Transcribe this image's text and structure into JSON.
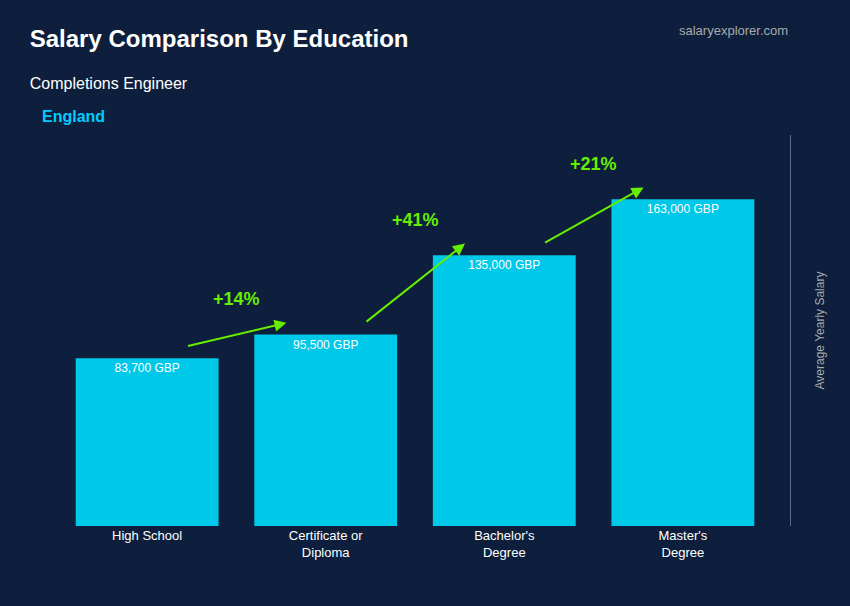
{
  "chart_data": {
    "type": "bar",
    "title": "Salary Comparison By Education",
    "subtitle": "Completions Engineer",
    "y_label": "Average Yearly Salary",
    "categories": [
      "High School",
      "Certificate or\nDiploma",
      "Bachelor's\nDegree",
      "Master's\nDegree"
    ],
    "values": [
      83700,
      95500,
      135000,
      163000
    ],
    "value_labels": [
      "83,700 GBP",
      "95,500 GBP",
      "135,000 GBP",
      "163,000 GBP"
    ],
    "data_labels": true,
    "color": "#00c8e8",
    "ylim": [
      0,
      195000
    ],
    "yticks": [],
    "tick_labels": "x",
    "grid": false,
    "annotations": [
      {
        "text": "England",
        "color": "#00ccff"
      },
      {
        "text": "salaryexplorer.com",
        "color": "#aaaaaa"
      },
      {
        "text": "+14%",
        "from": 0,
        "to": 1,
        "color": "#66ee00"
      },
      {
        "text": "+41%",
        "from": 1,
        "to": 2,
        "color": "#66ee00"
      },
      {
        "text": "+21%",
        "from": 2,
        "to": 3,
        "color": "#66ee00"
      }
    ]
  }
}
